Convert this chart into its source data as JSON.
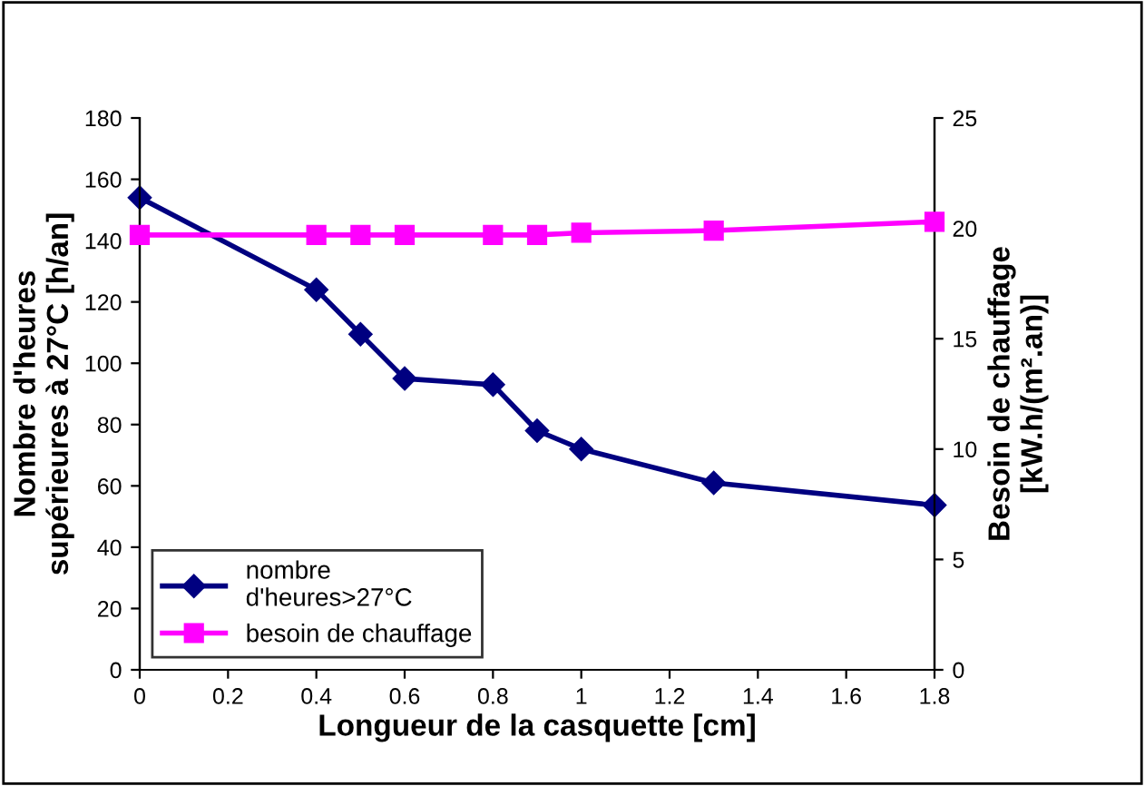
{
  "chart_data": {
    "type": "line",
    "xlabel": "Longueur de la casquette [cm]",
    "ylabel": "Nombre d'heures\nsupérieures à 27°C [h/an]",
    "y2label": "Besoin de chauffage\n[kW.h/(m².an)]",
    "x": [
      0,
      0.4,
      0.5,
      0.6,
      0.8,
      0.9,
      1.0,
      1.3,
      1.8
    ],
    "series": [
      {
        "name": "nombre\nd'heures>27°C",
        "color": "#000080",
        "marker": "diamond",
        "values": [
          154,
          124,
          109.5,
          95,
          93,
          78,
          72,
          61,
          53.7
        ]
      },
      {
        "name": "besoin de chauffage",
        "color": "#ff00ff",
        "marker": "square",
        "axis": "y2",
        "values": [
          19.7,
          19.7,
          19.7,
          19.7,
          19.7,
          19.7,
          19.8,
          19.9,
          20.3
        ]
      }
    ],
    "xlim": [
      0,
      1.8
    ],
    "xticks": [
      0,
      0.2,
      0.4,
      0.6,
      0.8,
      1,
      1.2,
      1.4,
      1.6,
      1.8
    ],
    "ylim": [
      0,
      180
    ],
    "yticks": [
      0,
      20,
      40,
      60,
      80,
      100,
      120,
      140,
      160,
      180
    ],
    "y2lim": [
      0,
      25
    ],
    "y2ticks": [
      0,
      5,
      10,
      15,
      20,
      25
    ],
    "grid": false,
    "legend": "bottom left",
    "line_style": "solid"
  }
}
